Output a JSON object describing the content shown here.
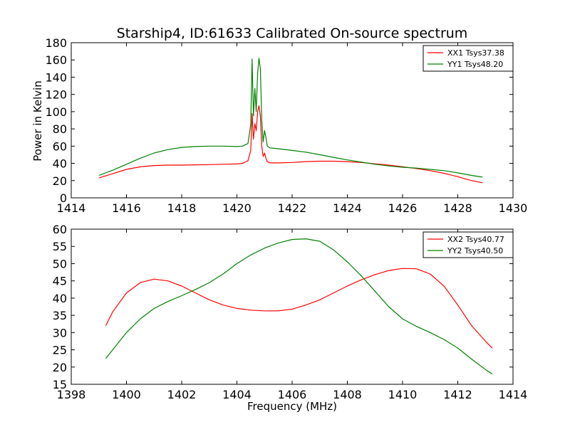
{
  "chart_data": [
    {
      "type": "line",
      "title": "Starship4, ID:61633 Calibrated On-source spectrum",
      "xlabel": "",
      "ylabel": "Power in Kelvin",
      "xlim": [
        1414,
        1430
      ],
      "ylim": [
        0,
        180
      ],
      "xticks": [
        1414,
        1416,
        1418,
        1420,
        1422,
        1424,
        1426,
        1428,
        1430
      ],
      "yticks": [
        0,
        20,
        40,
        60,
        80,
        100,
        120,
        140,
        160,
        180
      ],
      "grid": false,
      "legend_position": "top-right",
      "series": [
        {
          "name": "XX1 Tsys37.38",
          "color": "#ff0000",
          "x": [
            1415.0,
            1415.5,
            1416.0,
            1416.5,
            1417.0,
            1417.5,
            1418.0,
            1418.5,
            1419.0,
            1419.5,
            1420.0,
            1420.2,
            1420.4,
            1420.5,
            1420.55,
            1420.6,
            1420.65,
            1420.7,
            1420.75,
            1420.8,
            1420.85,
            1420.9,
            1420.95,
            1421.0,
            1421.05,
            1421.1,
            1421.2,
            1421.5,
            1422.0,
            1422.5,
            1423.0,
            1423.5,
            1424.0,
            1424.5,
            1425.0,
            1425.5,
            1426.0,
            1426.5,
            1427.0,
            1427.5,
            1428.0,
            1428.5,
            1428.9
          ],
          "values": [
            23,
            28,
            33,
            36,
            37.5,
            38,
            38,
            38.3,
            38.6,
            39,
            39.3,
            40,
            43,
            55,
            98,
            68,
            86,
            78,
            100,
            107,
            95,
            60,
            48,
            52,
            46,
            42,
            40.5,
            40.5,
            41,
            42,
            42.5,
            42.5,
            42,
            41,
            39.5,
            38,
            36,
            34,
            31.5,
            28.5,
            24.5,
            20,
            17.5
          ]
        },
        {
          "name": "YY1 Tsys48.20",
          "color": "#008000",
          "x": [
            1415.0,
            1415.5,
            1416.0,
            1416.5,
            1417.0,
            1417.5,
            1418.0,
            1418.5,
            1419.0,
            1419.5,
            1420.0,
            1420.2,
            1420.4,
            1420.5,
            1420.55,
            1420.6,
            1420.65,
            1420.7,
            1420.75,
            1420.8,
            1420.85,
            1420.9,
            1420.95,
            1421.0,
            1421.05,
            1421.1,
            1421.2,
            1421.5,
            1422.0,
            1422.5,
            1423.0,
            1423.5,
            1424.0,
            1424.5,
            1425.0,
            1425.5,
            1426.0,
            1426.5,
            1427.0,
            1427.5,
            1428.0,
            1428.5,
            1428.9
          ],
          "values": [
            26,
            32,
            39,
            46,
            52,
            56,
            58.5,
            59.5,
            60,
            60,
            59.5,
            60,
            63,
            85,
            161,
            95,
            127,
            100,
            145,
            162,
            150,
            90,
            65,
            78,
            70,
            60,
            58,
            57,
            55,
            53,
            50,
            47,
            44,
            41.5,
            39,
            37,
            35.5,
            34.5,
            33,
            31.5,
            29,
            26,
            24
          ]
        }
      ]
    },
    {
      "type": "line",
      "title": "",
      "xlabel": "Frequency (MHz)",
      "ylabel": "",
      "xlim": [
        1398,
        1414
      ],
      "ylim": [
        15,
        60
      ],
      "xticks": [
        1398,
        1400,
        1402,
        1404,
        1406,
        1408,
        1410,
        1412,
        1414
      ],
      "yticks": [
        15,
        20,
        25,
        30,
        35,
        40,
        45,
        50,
        55,
        60
      ],
      "grid": false,
      "legend_position": "top-right",
      "series": [
        {
          "name": "XX2 Tsys40.77",
          "color": "#ff0000",
          "x": [
            1399.25,
            1399.5,
            1400.0,
            1400.5,
            1401.0,
            1401.5,
            1402.0,
            1402.5,
            1403.0,
            1403.5,
            1404.0,
            1404.5,
            1405.0,
            1405.5,
            1406.0,
            1406.5,
            1407.0,
            1407.5,
            1408.0,
            1408.5,
            1409.0,
            1409.5,
            1410.0,
            1410.5,
            1411.0,
            1411.5,
            1412.0,
            1412.5,
            1413.0,
            1413.25
          ],
          "values": [
            32,
            36,
            41.5,
            44.5,
            45.5,
            45,
            43.5,
            41.5,
            39.5,
            38,
            37,
            36.5,
            36.3,
            36.3,
            36.8,
            38,
            39.5,
            41.5,
            43.5,
            45.3,
            46.8,
            48,
            48.6,
            48.5,
            47,
            43.5,
            38,
            32,
            27.5,
            25.5
          ]
        },
        {
          "name": "YY2 Tsys40.50",
          "color": "#008000",
          "x": [
            1399.25,
            1399.5,
            1400.0,
            1400.5,
            1401.0,
            1401.5,
            1402.0,
            1402.5,
            1403.0,
            1403.5,
            1404.0,
            1404.5,
            1405.0,
            1405.5,
            1406.0,
            1406.5,
            1407.0,
            1407.5,
            1408.0,
            1408.5,
            1409.0,
            1409.5,
            1410.0,
            1410.5,
            1411.0,
            1411.5,
            1412.0,
            1412.5,
            1413.0,
            1413.25
          ],
          "values": [
            22.5,
            25,
            30,
            34,
            37,
            39,
            40.7,
            42.5,
            44.5,
            47,
            50,
            52.5,
            54.5,
            56,
            57,
            57.2,
            56.5,
            54,
            50.5,
            46.5,
            42,
            37.5,
            34,
            31.8,
            30,
            28,
            25.5,
            22.3,
            19.3,
            18
          ]
        }
      ]
    }
  ]
}
